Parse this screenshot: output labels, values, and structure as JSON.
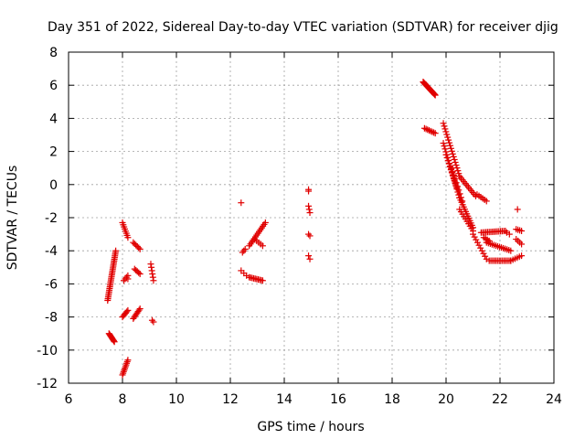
{
  "chart_data": {
    "type": "scatter",
    "title": "Day 351 of 2022, Sidereal Day-to-day VTEC variation (SDTVAR) for receiver djig",
    "xlabel": "GPS time / hours",
    "ylabel": "SDTVAR / TECUs",
    "xlim": [
      6,
      24
    ],
    "ylim": [
      -12,
      8
    ],
    "xticks": [
      6,
      8,
      10,
      12,
      14,
      16,
      18,
      20,
      22,
      24
    ],
    "yticks": [
      -12,
      -10,
      -8,
      -6,
      -4,
      -2,
      0,
      2,
      4,
      6,
      8
    ],
    "grid": true,
    "marker": "plus",
    "color": "#e00000",
    "segments": [
      {
        "x0": 7.45,
        "y0": -7.0,
        "x1": 7.75,
        "y1": -4.0,
        "n": 30
      },
      {
        "x0": 7.5,
        "y0": -9.0,
        "x1": 7.7,
        "y1": -9.5,
        "n": 10
      },
      {
        "x0": 8.0,
        "y0": -11.5,
        "x1": 8.2,
        "y1": -10.6,
        "n": 10
      },
      {
        "x0": 8.0,
        "y0": -8.0,
        "x1": 8.2,
        "y1": -7.6,
        "n": 6
      },
      {
        "x0": 8.0,
        "y0": -2.3,
        "x1": 8.2,
        "y1": -3.2,
        "n": 8
      },
      {
        "x0": 8.05,
        "y0": -5.8,
        "x1": 8.2,
        "y1": -5.5,
        "n": 4
      },
      {
        "x0": 8.4,
        "y0": -3.5,
        "x1": 8.65,
        "y1": -3.9,
        "n": 6
      },
      {
        "x0": 8.45,
        "y0": -5.1,
        "x1": 8.65,
        "y1": -5.4,
        "n": 5
      },
      {
        "x0": 8.4,
        "y0": -8.1,
        "x1": 8.65,
        "y1": -7.5,
        "n": 8
      },
      {
        "x0": 9.05,
        "y0": -4.8,
        "x1": 9.15,
        "y1": -5.8,
        "n": 6
      },
      {
        "x0": 9.1,
        "y0": -8.2,
        "x1": 9.15,
        "y1": -8.3,
        "n": 2
      },
      {
        "x0": 12.45,
        "y0": -4.1,
        "x1": 12.55,
        "y1": -3.9,
        "n": 3
      },
      {
        "x0": 12.4,
        "y0": -5.2,
        "x1": 12.6,
        "y1": -5.5,
        "n": 3
      },
      {
        "x0": 12.7,
        "y0": -5.6,
        "x1": 13.2,
        "y1": -5.8,
        "n": 10
      },
      {
        "x0": 12.7,
        "y0": -3.7,
        "x1": 13.3,
        "y1": -2.3,
        "n": 14
      },
      {
        "x0": 12.9,
        "y0": -3.3,
        "x1": 13.2,
        "y1": -3.7,
        "n": 5
      },
      {
        "x0": 14.9,
        "y0": -0.3,
        "x1": 14.9,
        "y1": -0.4,
        "n": 2
      },
      {
        "x0": 14.9,
        "y0": -1.3,
        "x1": 14.95,
        "y1": -1.7,
        "n": 3
      },
      {
        "x0": 14.9,
        "y0": -3.0,
        "x1": 14.95,
        "y1": -3.1,
        "n": 2
      },
      {
        "x0": 14.9,
        "y0": -4.3,
        "x1": 14.95,
        "y1": -4.5,
        "n": 2
      },
      {
        "x0": 19.15,
        "y0": 6.2,
        "x1": 19.6,
        "y1": 5.4,
        "n": 22
      },
      {
        "x0": 19.2,
        "y0": 3.4,
        "x1": 19.6,
        "y1": 3.1,
        "n": 8
      },
      {
        "x0": 19.9,
        "y0": 3.7,
        "x1": 20.5,
        "y1": 0.5,
        "n": 20
      },
      {
        "x0": 20.5,
        "y0": 0.5,
        "x1": 21.1,
        "y1": -0.7,
        "n": 12
      },
      {
        "x0": 21.15,
        "y0": -0.6,
        "x1": 21.5,
        "y1": -1.0,
        "n": 6
      },
      {
        "x0": 19.9,
        "y0": 2.5,
        "x1": 20.5,
        "y1": -0.8,
        "n": 20
      },
      {
        "x0": 20.5,
        "y0": -0.8,
        "x1": 21.0,
        "y1": -2.6,
        "n": 14
      },
      {
        "x0": 20.0,
        "y0": 1.8,
        "x1": 20.4,
        "y1": -0.2,
        "n": 12
      },
      {
        "x0": 20.2,
        "y0": 1.0,
        "x1": 20.6,
        "y1": -1.0,
        "n": 10
      },
      {
        "x0": 20.5,
        "y0": -1.5,
        "x1": 21.0,
        "y1": -2.8,
        "n": 10
      },
      {
        "x0": 21.0,
        "y0": -3.0,
        "x1": 21.5,
        "y1": -4.5,
        "n": 10
      },
      {
        "x0": 21.3,
        "y0": -2.9,
        "x1": 22.2,
        "y1": -2.8,
        "n": 16
      },
      {
        "x0": 21.4,
        "y0": -3.2,
        "x1": 21.6,
        "y1": -3.4,
        "n": 4
      },
      {
        "x0": 21.5,
        "y0": -3.5,
        "x1": 22.4,
        "y1": -4.0,
        "n": 14
      },
      {
        "x0": 21.6,
        "y0": -4.6,
        "x1": 22.4,
        "y1": -4.6,
        "n": 14
      },
      {
        "x0": 22.4,
        "y0": -4.6,
        "x1": 22.8,
        "y1": -4.3,
        "n": 6
      },
      {
        "x0": 22.6,
        "y0": -3.3,
        "x1": 22.8,
        "y1": -3.6,
        "n": 4
      },
      {
        "x0": 22.6,
        "y0": -2.7,
        "x1": 22.8,
        "y1": -2.8,
        "n": 4
      },
      {
        "x0": 22.25,
        "y0": -2.9,
        "x1": 22.35,
        "y1": -3.0,
        "n": 2
      },
      {
        "x0": 22.65,
        "y0": -1.5,
        "x1": 22.65,
        "y1": -1.6,
        "n": 1
      }
    ],
    "points": [
      {
        "x": 12.4,
        "y": -1.1
      },
      {
        "x": 8.2,
        "y": -5.7
      }
    ]
  }
}
